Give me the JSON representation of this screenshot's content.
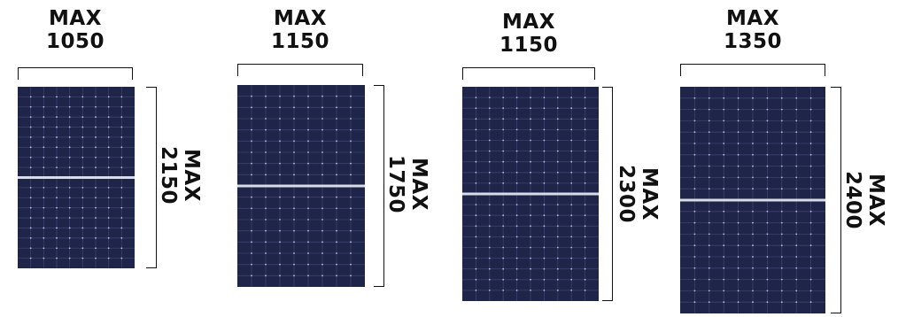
{
  "panels": [
    {
      "width_label": "MAX",
      "width_value": "1050",
      "height_label": "MAX",
      "height_value": "2150"
    },
    {
      "width_label": "MAX",
      "width_value": "1150",
      "height_label": "MAX",
      "height_value": "1750"
    },
    {
      "width_label": "MAX",
      "width_value": "1150",
      "height_label": "MAX",
      "height_value": "2300"
    },
    {
      "width_label": "MAX",
      "width_value": "1350",
      "height_label": "MAX",
      "height_value": "2400"
    }
  ],
  "colors": {
    "panel": "#1f2548",
    "cell_line": "#3a4170",
    "busbar": "#d8dce8",
    "ink": "#111111"
  }
}
